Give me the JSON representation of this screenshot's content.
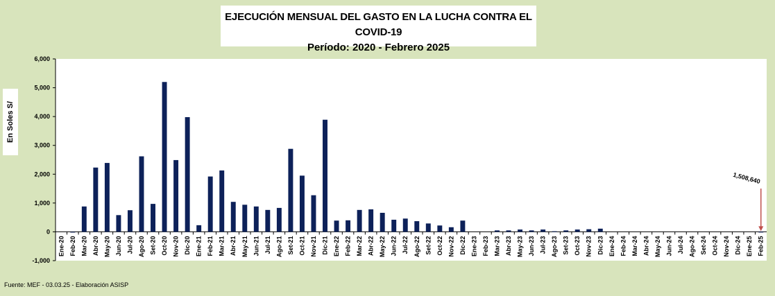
{
  "chart_data": {
    "type": "bar",
    "title": "EJECUCIÓN MENSUAL DEL GASTO EN LA LUCHA CONTRA EL COVID-19",
    "subtitle": "Período: 2020 - Febrero 2025",
    "xlabel": "",
    "ylabel": "En Soles S/",
    "ylim": [
      -1000,
      6000
    ],
    "yticks": [
      "-1,000",
      "0",
      "1,000",
      "2,000",
      "3,000",
      "4,000",
      "5,000",
      "6,000"
    ],
    "ytick_values": [
      -1000,
      0,
      1000,
      2000,
      3000,
      4000,
      5000,
      6000
    ],
    "grid": false,
    "bar_color": "#0d2159",
    "categories": [
      "Ene-20",
      "Feb-20",
      "Mar-20",
      "Abr-20",
      "May-20",
      "Jun-20",
      "Jul-20",
      "Ago-20",
      "Set-20",
      "Oct-20",
      "Nov-20",
      "Dic-20",
      "Ene-21",
      "Feb-21",
      "Mar-21",
      "Abr-21",
      "May-21",
      "Jun-21",
      "Jul-21",
      "Ago-21",
      "Set-21",
      "Oct-21",
      "Nov-21",
      "Dic-21",
      "Ene-22",
      "Feb-22",
      "Mar-22",
      "Abr-22",
      "May-22",
      "Jun-22",
      "Jul-22",
      "Ago-22",
      "Set-22",
      "Oct-22",
      "Nov-22",
      "Dic-22",
      "Ene-23",
      "Feb-23",
      "Mar-23",
      "Abr-23",
      "May-23",
      "Jun-23",
      "Jul-23",
      "Ago-23",
      "Set-23",
      "Oct-23",
      "Nov-23",
      "Dic-23",
      "Ene-24",
      "Feb-24",
      "Mar-24",
      "Abr-24",
      "May-24",
      "Jun-24",
      "Jul-24",
      "Ago-24",
      "Set-24",
      "Oct-24",
      "Nov-24",
      "Dic-24",
      "Ene-25",
      "Feb-25"
    ],
    "values": [
      0,
      -20,
      880,
      2230,
      2390,
      580,
      750,
      2620,
      970,
      5200,
      2490,
      3980,
      230,
      1920,
      2130,
      1040,
      940,
      880,
      760,
      830,
      2880,
      1950,
      1270,
      3890,
      390,
      400,
      760,
      780,
      660,
      420,
      460,
      370,
      290,
      220,
      160,
      390,
      0,
      0,
      50,
      50,
      80,
      50,
      80,
      20,
      50,
      80,
      90,
      110,
      0,
      0,
      0,
      0,
      0,
      0,
      0,
      0,
      0,
      0,
      0,
      0,
      0,
      1.5
    ],
    "annotation": {
      "text": "1,508,640",
      "category": "Feb-25",
      "arrow_color": "#c0504d"
    }
  },
  "source": "Fuente:  MEF  - 03.03.25 - Elaboración ASISP"
}
